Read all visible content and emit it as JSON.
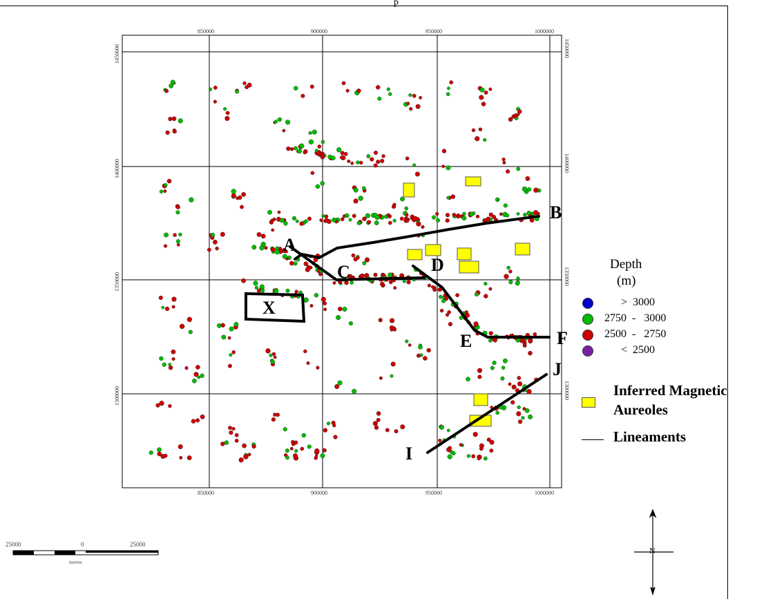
{
  "header": {
    "text": "p"
  },
  "map": {
    "x_ticks": [
      "850000",
      "900000",
      "950000",
      "1000000"
    ],
    "y_ticks": [
      "1450000",
      "1400000",
      "1350000",
      "1300000"
    ],
    "points": [
      "A",
      "B",
      "C",
      "D",
      "E",
      "F",
      "I",
      "J",
      "X"
    ],
    "colors": {
      "deep": "#0000cc",
      "mid_high": "#00bb00",
      "mid_low": "#cc0000",
      "shallow": "#7a1fa2",
      "aureole": "#ffff00",
      "lineament": "#000000"
    }
  },
  "legend": {
    "title_line1": "Depth",
    "title_line2": "(m)",
    "rows": [
      {
        "range": "      >  3000",
        "color": "#0000cc"
      },
      {
        "range": "2750  -   3000",
        "color": "#00bb00"
      },
      {
        "range": "2500  -   2750",
        "color": "#cc0000"
      },
      {
        "range": "      <  2500",
        "color": "#7a1fa2"
      }
    ],
    "aureoles_line1": "Inferred Magnetic",
    "aureoles_line2": "Aureoles",
    "lineaments": "Lineaments"
  },
  "scale_bar": {
    "left": "25000",
    "mid": "0",
    "right": "25000",
    "unit": "metres"
  },
  "north_arrow": {
    "label": "N"
  }
}
